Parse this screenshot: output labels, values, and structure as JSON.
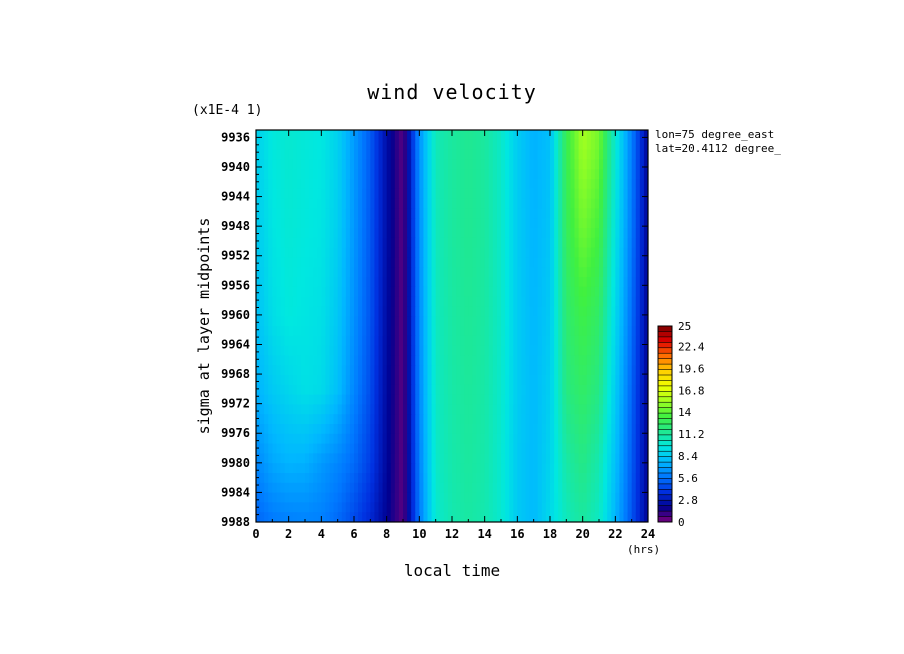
{
  "chart_data": {
    "type": "heatmap",
    "title": "wind velocity",
    "scale_note": "(x1E-4 1)",
    "xlabel": "local time",
    "ylabel": "sigma at layer midpoints",
    "x_unit": "(hrs)",
    "annotations": [
      "lon=75 degree_east",
      "lat=20.4112 degree_"
    ],
    "x_ticks": [
      "0",
      "2",
      "4",
      "6",
      "8",
      "10",
      "12",
      "14",
      "16",
      "18",
      "20",
      "22",
      "24"
    ],
    "y_ticks": [
      "9936",
      "9940",
      "9944",
      "9948",
      "9952",
      "9956",
      "9960",
      "9964",
      "9968",
      "9972",
      "9976",
      "9980",
      "9984",
      "9988"
    ],
    "xlim": [
      0,
      24
    ],
    "ylim": [
      9988,
      9935
    ],
    "colorbar_ticks": [
      "25",
      "22.4",
      "19.6",
      "16.8",
      "14",
      "11.2",
      "8.4",
      "5.6",
      "2.8",
      "0"
    ],
    "colorbar_range": [
      0,
      25
    ],
    "colormap": [
      "#7a0000",
      "#dd0000",
      "#ff7000",
      "#ffd000",
      "#f0ff00",
      "#a0ff20",
      "#40f040",
      "#20e890",
      "#00e8e0",
      "#00b8ff",
      "#0078ff",
      "#0030e0",
      "#000090",
      "#7a007a"
    ],
    "times": [
      0,
      1,
      2,
      3,
      4,
      5,
      6,
      7,
      8,
      9,
      10,
      11,
      12,
      13,
      14,
      15,
      16,
      17,
      18,
      19,
      20,
      21,
      22,
      23,
      24
    ],
    "sigma": [
      9936,
      9948,
      9960,
      9970,
      9980,
      9988
    ],
    "values": [
      [
        8.6,
        9.7,
        10.0,
        9.8,
        9.6,
        8.7,
        6.8,
        5.0,
        2.5,
        0.5,
        6.5,
        10.6,
        11.2,
        11.5,
        11.2,
        10.2,
        8.5,
        7.5,
        8.0,
        13.0,
        15.5,
        14.5,
        10.0,
        6.0,
        2.0
      ],
      [
        8.4,
        9.5,
        9.9,
        9.7,
        9.5,
        8.6,
        6.7,
        4.9,
        2.5,
        0.5,
        6.4,
        10.5,
        11.2,
        11.5,
        11.2,
        10.2,
        8.5,
        7.6,
        8.2,
        12.8,
        14.5,
        13.5,
        9.5,
        5.8,
        2.0
      ],
      [
        8.0,
        9.2,
        9.7,
        9.5,
        9.3,
        8.3,
        6.5,
        4.8,
        2.4,
        0.5,
        6.3,
        10.4,
        11.1,
        11.4,
        11.1,
        10.2,
        8.5,
        7.7,
        8.4,
        12.3,
        13.3,
        12.5,
        9.0,
        5.5,
        2.0
      ],
      [
        7.5,
        8.4,
        8.9,
        9.3,
        9.1,
        8.0,
        6.2,
        4.6,
        2.3,
        0.5,
        6.2,
        10.3,
        11.0,
        11.3,
        11.0,
        10.1,
        8.5,
        7.8,
        8.6,
        11.9,
        12.6,
        11.8,
        8.5,
        5.2,
        2.0
      ],
      [
        6.2,
        7.2,
        7.6,
        7.5,
        6.8,
        6.2,
        5.4,
        4.2,
        2.2,
        0.5,
        6.0,
        10.2,
        10.9,
        11.2,
        10.9,
        10.0,
        8.4,
        7.8,
        8.8,
        11.0,
        11.8,
        10.8,
        8.0,
        5.0,
        2.0
      ],
      [
        5.2,
        5.8,
        6.0,
        6.1,
        6.0,
        5.4,
        4.5,
        3.5,
        2.0,
        0.5,
        5.8,
        10.0,
        10.8,
        11.1,
        10.8,
        10.0,
        8.4,
        7.8,
        9.0,
        10.5,
        11.2,
        10.3,
        7.6,
        4.8,
        2.0
      ]
    ]
  }
}
